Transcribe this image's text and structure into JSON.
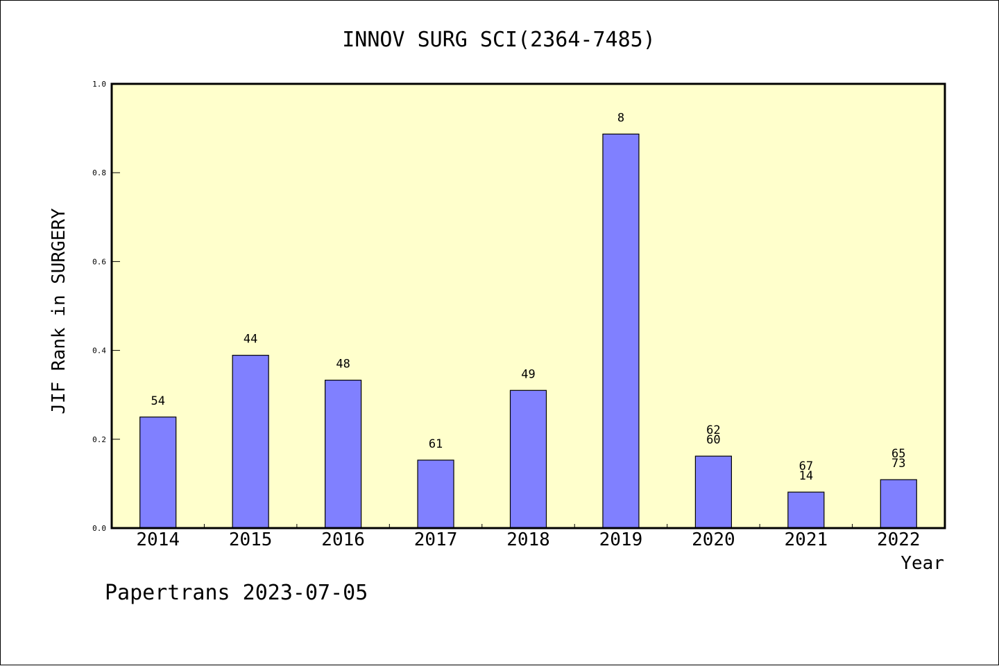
{
  "chart_data": {
    "type": "bar",
    "title": "INNOV SURG SCI(2364-7485)",
    "xlabel": "Year",
    "ylabel": "JIF Rank in SURGERY",
    "categories": [
      "2014",
      "2015",
      "2016",
      "2017",
      "2018",
      "2019",
      "2020",
      "2021",
      "2022"
    ],
    "values": [
      0.25,
      0.389,
      0.333,
      0.153,
      0.31,
      0.887,
      0.162,
      0.081,
      0.109
    ],
    "bar_labels": [
      [
        "54"
      ],
      [
        "44"
      ],
      [
        "48"
      ],
      [
        "61"
      ],
      [
        "49"
      ],
      [
        "8"
      ],
      [
        "62",
        "60"
      ],
      [
        "67",
        "14"
      ],
      [
        "65",
        "73"
      ]
    ],
    "ylim": [
      0,
      1.0
    ],
    "yticks": [
      "0.0",
      "0.2",
      "0.4",
      "0.6",
      "0.8",
      "1.0"
    ],
    "grid": false,
    "legend": "none",
    "colors": {
      "bar_fill": "#8080ff",
      "plot_background": "#ffffcc",
      "axis": "#000000"
    }
  },
  "footer": {
    "watermark": "Papertrans 2023-07-05"
  }
}
